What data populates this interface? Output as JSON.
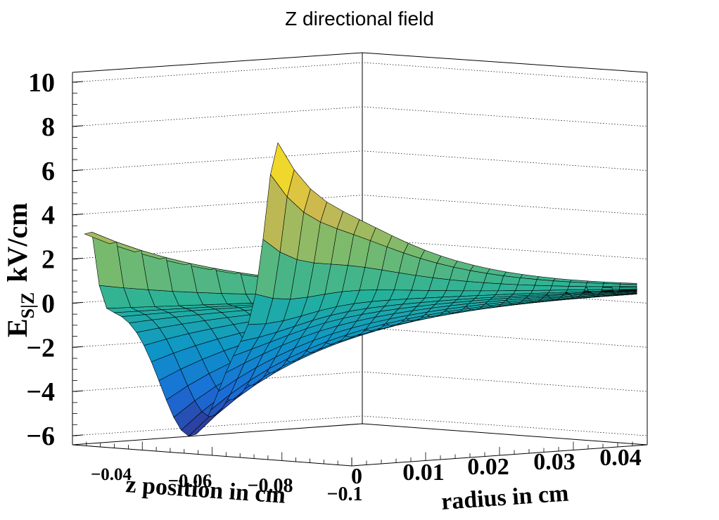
{
  "chart_data": {
    "type": "surface3d",
    "title": "Z directional field",
    "zlabel": {
      "main": "E",
      "sub": "S|Z",
      "unit": "kV/cm"
    },
    "xlabel": "z position in cm",
    "ylabel": "radius in cm",
    "z_ticks": [
      "10",
      "8",
      "6",
      "4",
      "2",
      "0",
      "−2",
      "−4",
      "−6"
    ],
    "z_tick_values": [
      10,
      8,
      6,
      4,
      2,
      0,
      -2,
      -4,
      -6
    ],
    "zlim": [
      -6.5,
      10.5
    ],
    "x_ticks": [
      "−0.04",
      "−0.06",
      "−0.08",
      "−0.1"
    ],
    "y_ticks": [
      "0",
      "0.01",
      "0.02",
      "0.03",
      "0.04"
    ],
    "surface_features": [
      {
        "name": "left ridge peak",
        "z": 4.0
      },
      {
        "name": "left trough minimum",
        "z": -6.0
      },
      {
        "name": "central peak",
        "z": 8.1
      },
      {
        "name": "right trough minimum",
        "z": -4.5
      },
      {
        "name": "far tail",
        "z": 0.0
      }
    ],
    "colormap": [
      "#352a87",
      "#1a6ed8",
      "#0d95c7",
      "#25b29b",
      "#7bba6c",
      "#d2b94e",
      "#fde31c",
      "#f9fb0e"
    ]
  }
}
